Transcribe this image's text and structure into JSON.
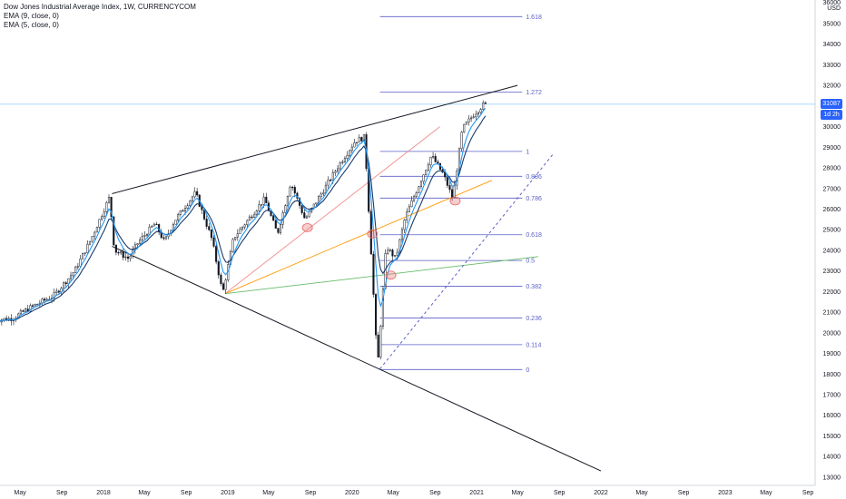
{
  "legend": {
    "title": "Dow Jones Industrial Average Index, 1W, CURRENCYCOM",
    "ema9": "EMA (9, close, 0)",
    "ema5": "EMA (5, close, 0)"
  },
  "price_axis": {
    "currency": "USD",
    "top_value": "36000",
    "current_price": "31087",
    "countdown": "1d 2h"
  },
  "colors": {
    "candle": "#131722",
    "ema_fast": "#2196f3",
    "ema_slow": "#1b3a6b",
    "fib": "#5b5fc7",
    "trendline": "#131722",
    "fan_red": "#f28b8b",
    "fan_orange": "#ff9800",
    "fan_green": "#66bb6a",
    "marker": "#e57373",
    "price_tag": "#2962ff",
    "current_line": "#90caf9"
  },
  "chart_data": {
    "type": "candlestick",
    "title": "Dow Jones Industrial Average Index, 1W, CURRENCYCOM",
    "ylim": [
      12600,
      36100
    ],
    "y_ticks": [
      13000,
      14000,
      15000,
      16000,
      17000,
      18000,
      19000,
      20000,
      21000,
      22000,
      23000,
      24000,
      25000,
      26000,
      27000,
      28000,
      29000,
      30000,
      31000,
      32000,
      33000,
      34000,
      35000
    ],
    "x_ticks": [
      {
        "date": "2017-05-01",
        "label": "May"
      },
      {
        "date": "2017-09-01",
        "label": "Sep"
      },
      {
        "date": "2018-01-01",
        "label": "2018"
      },
      {
        "date": "2018-05-01",
        "label": "May"
      },
      {
        "date": "2018-09-01",
        "label": "Sep"
      },
      {
        "date": "2019-01-01",
        "label": "2019"
      },
      {
        "date": "2019-05-01",
        "label": "May"
      },
      {
        "date": "2019-09-01",
        "label": "Sep"
      },
      {
        "date": "2020-01-01",
        "label": "2020"
      },
      {
        "date": "2020-05-01",
        "label": "May"
      },
      {
        "date": "2020-09-01",
        "label": "Sep"
      },
      {
        "date": "2021-01-01",
        "label": "2021"
      },
      {
        "date": "2021-05-01",
        "label": "May"
      },
      {
        "date": "2021-09-01",
        "label": "Sep"
      },
      {
        "date": "2022-01-01",
        "label": "2022"
      },
      {
        "date": "2022-05-01",
        "label": "May"
      },
      {
        "date": "2022-09-01",
        "label": "Sep"
      },
      {
        "date": "2023-01-01",
        "label": "2023"
      },
      {
        "date": "2023-05-01",
        "label": "May"
      },
      {
        "date": "2023-09-01",
        "label": "Sep"
      }
    ],
    "price_path": [
      [
        "2017-02-15",
        20600
      ],
      [
        "2017-04-15",
        20700
      ],
      [
        "2017-06-15",
        21300
      ],
      [
        "2017-08-15",
        21800
      ],
      [
        "2017-10-15",
        23000
      ],
      [
        "2017-12-01",
        24500
      ],
      [
        "2018-01-26",
        26600
      ],
      [
        "2018-02-09",
        24000
      ],
      [
        "2018-03-23",
        23600
      ],
      [
        "2018-04-20",
        24400
      ],
      [
        "2018-06-08",
        25300
      ],
      [
        "2018-07-06",
        24400
      ],
      [
        "2018-08-03",
        25400
      ],
      [
        "2018-10-05",
        26800
      ],
      [
        "2018-11-23",
        24500
      ],
      [
        "2018-12-24",
        21900
      ],
      [
        "2019-01-25",
        24600
      ],
      [
        "2019-04-26",
        26500
      ],
      [
        "2019-06-03",
        24800
      ],
      [
        "2019-07-12",
        27300
      ],
      [
        "2019-08-23",
        25500
      ],
      [
        "2019-10-04",
        26600
      ],
      [
        "2019-11-29",
        28100
      ],
      [
        "2020-01-17",
        29300
      ],
      [
        "2020-02-14",
        29500
      ],
      [
        "2020-02-28",
        25400
      ],
      [
        "2020-03-23",
        18300
      ],
      [
        "2020-04-17",
        24200
      ],
      [
        "2020-05-15",
        23600
      ],
      [
        "2020-06-12",
        25600
      ],
      [
        "2020-08-28",
        28600
      ],
      [
        "2020-10-02",
        27700
      ],
      [
        "2020-10-30",
        26500
      ],
      [
        "2020-11-27",
        29900
      ],
      [
        "2020-12-31",
        30600
      ],
      [
        "2021-01-29",
        31087
      ]
    ],
    "fibonacci": {
      "low": 18220,
      "high": 28800,
      "start_date": "2020-03-23",
      "end_date": "2021-05-15",
      "levels": [
        {
          "ratio": 0,
          "label": "0"
        },
        {
          "ratio": 0.114,
          "label": "0.114"
        },
        {
          "ratio": 0.236,
          "label": "0.236"
        },
        {
          "ratio": 0.382,
          "label": "0.382"
        },
        {
          "ratio": 0.5,
          "label": "0.5"
        },
        {
          "ratio": 0.618,
          "label": "0.618"
        },
        {
          "ratio": 0.786,
          "label": "0.786"
        },
        {
          "ratio": 0.886,
          "label": "0.886"
        },
        {
          "ratio": 1,
          "label": "1"
        },
        {
          "ratio": 1.272,
          "label": "1.272"
        },
        {
          "ratio": 1.618,
          "label": "1.618"
        }
      ]
    },
    "trendlines": [
      {
        "name": "upper",
        "from": [
          "2018-01-26",
          26750
        ],
        "to": [
          "2021-05-01",
          32000
        ],
        "style": "solid"
      },
      {
        "name": "lower",
        "from": [
          "2018-01-26",
          24200
        ],
        "to": [
          "2022-01-01",
          13300
        ],
        "style": "solid"
      },
      {
        "name": "fan-red",
        "from": [
          "2018-12-24",
          21900
        ],
        "to": [
          "2020-09-15",
          30000
        ],
        "style": "solid"
      },
      {
        "name": "fan-orange",
        "from": [
          "2018-12-24",
          21900
        ],
        "to": [
          "2021-02-15",
          27400
        ],
        "style": "solid"
      },
      {
        "name": "fan-green",
        "from": [
          "2018-12-24",
          21900
        ],
        "to": [
          "2021-07-01",
          23700
        ],
        "style": "solid"
      },
      {
        "name": "projection",
        "from": [
          "2020-03-23",
          18250
        ],
        "to": [
          "2021-08-15",
          28700
        ],
        "style": "dashed"
      }
    ],
    "markers": [
      {
        "date": "2019-08-23",
        "value": 25100
      },
      {
        "date": "2020-03-01",
        "value": 24800
      },
      {
        "date": "2020-04-24",
        "value": 22800
      },
      {
        "date": "2020-10-30",
        "value": 26400
      }
    ],
    "current_price": 31087
  }
}
